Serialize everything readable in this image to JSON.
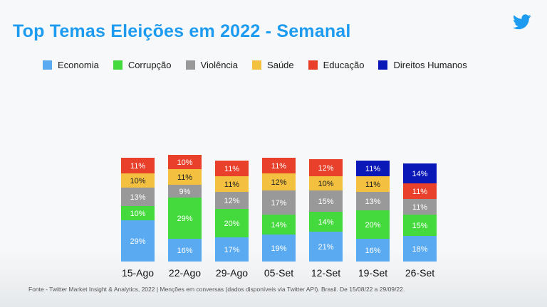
{
  "title": "Top Temas Eleições em 2022 - Semanal",
  "logo": "twitter-bird-icon",
  "source": "Fonte - Twitter Market Insight & Analytics, 2022 | Menções em conversas (dados disponíveis via Twitter API). Brasil. De 15/08/22 a 29/09/22.",
  "colors": {
    "title": "#1d9bf0",
    "Economia": "#5aaaf2",
    "Corrupção": "#44d93c",
    "Violência": "#999999",
    "Saúde": "#f3c040",
    "Educação": "#e8402a",
    "Direitos Humanos": "#0a18b8"
  },
  "chart_data": {
    "type": "bar",
    "stacked": true,
    "title": "Top Temas Eleições em 2022 - Semanal",
    "categories": [
      "15-Ago",
      "22-Ago",
      "29-Ago",
      "05-Set",
      "12-Set",
      "19-Set",
      "26-Set"
    ],
    "series": [
      {
        "name": "Economia",
        "values": [
          29,
          16,
          17,
          19,
          21,
          16,
          18
        ],
        "labels": [
          "29%",
          "16%",
          "17%",
          "19%",
          "21%",
          "16%",
          "18%"
        ]
      },
      {
        "name": "Corrupção",
        "values": [
          10,
          29,
          20,
          14,
          14,
          20,
          15
        ],
        "labels": [
          "10%",
          "29%",
          "20%",
          "14%",
          "14%",
          "20%",
          "15%"
        ]
      },
      {
        "name": "Violência",
        "values": [
          13,
          9,
          12,
          17,
          15,
          13,
          11
        ],
        "labels": [
          "13%",
          "9%",
          "12%",
          "17%",
          "15%",
          "13%",
          "11%"
        ]
      },
      {
        "name": "Saúde",
        "values": [
          10,
          11,
          11,
          12,
          10,
          11,
          0
        ],
        "labels": [
          "10%",
          "11%",
          "11%",
          "12%",
          "10%",
          "11%",
          ""
        ]
      },
      {
        "name": "Educação",
        "values": [
          11,
          10,
          11,
          11,
          12,
          0,
          11
        ],
        "labels": [
          "11%",
          "10%",
          "11%",
          "11%",
          "12%",
          "",
          "11%"
        ]
      },
      {
        "name": "Direitos Humanos",
        "values": [
          0,
          0,
          0,
          0,
          0,
          11,
          14
        ],
        "labels": [
          "",
          "",
          "",
          "",
          "",
          "11%",
          "14%"
        ]
      }
    ],
    "legend": "top",
    "grid": false
  }
}
